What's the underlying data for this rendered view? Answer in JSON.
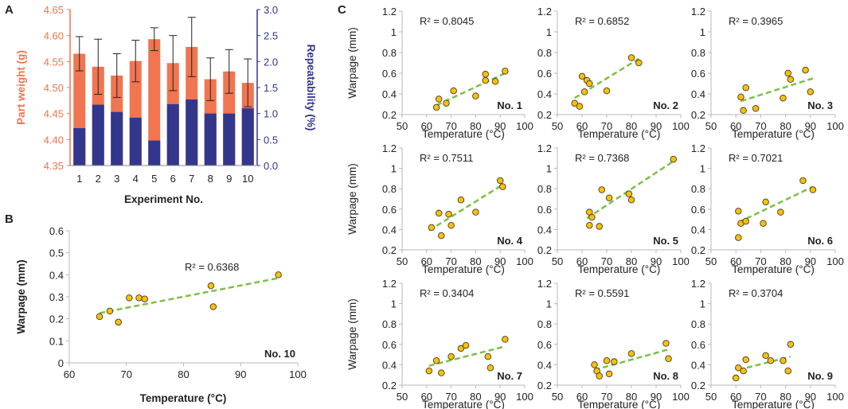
{
  "chart_data": [
    {
      "panel": "A",
      "type": "bar",
      "categories": [
        "1",
        "2",
        "3",
        "4",
        "5",
        "6",
        "7",
        "8",
        "9",
        "10"
      ],
      "xlabel": "Experiment No.",
      "series": [
        {
          "name": "Part weight",
          "axis": "left",
          "values": [
            4.565,
            4.54,
            4.523,
            4.551,
            4.593,
            4.547,
            4.578,
            4.516,
            4.531,
            4.509
          ],
          "errors": [
            0.033,
            0.053,
            0.042,
            0.04,
            0.022,
            0.053,
            0.057,
            0.041,
            0.042,
            0.046
          ]
        },
        {
          "name": "Repeatability",
          "axis": "right",
          "values": [
            0.72,
            1.17,
            1.03,
            0.92,
            0.48,
            1.18,
            1.27,
            1.0,
            1.0,
            1.1
          ]
        }
      ],
      "ylabel_left": "Part weight (g)",
      "ylim_left": [
        4.35,
        4.65
      ],
      "yticks_left": [
        "4.35",
        "4.40",
        "4.45",
        "4.50",
        "4.55",
        "4.60",
        "4.65"
      ],
      "ylabel_right": "Repeatability (%)",
      "ylim_right": [
        0,
        3
      ],
      "yticks_right": [
        "0.0",
        "0.5",
        "1.0",
        "1.5",
        "2.0",
        "2.5",
        "3.0"
      ],
      "colors": {
        "bar_left": "#f07550",
        "bar_right": "#33378c",
        "axis_left": "#f07550",
        "axis_right": "#33378c"
      }
    },
    {
      "panel": "B",
      "type": "scatter",
      "label": "No. 10",
      "r2": "R² = 0.6368",
      "x": [
        65.3,
        67.1,
        68.6,
        70.5,
        72.2,
        73.2,
        84.8,
        85.2,
        96.6
      ],
      "y": [
        0.21,
        0.235,
        0.185,
        0.295,
        0.295,
        0.29,
        0.35,
        0.255,
        0.4
      ],
      "trend": [
        [
          65.3,
          0.226
        ],
        [
          96.6,
          0.385
        ]
      ],
      "xlabel": "Temperature (°C)",
      "ylabel": "Warpage (mm)",
      "xlim": [
        60,
        100
      ],
      "ylim": [
        0,
        0.6
      ],
      "xticks": [
        "60",
        "70",
        "80",
        "90",
        "100"
      ],
      "yticks": [
        "0",
        "0.1",
        "0.2",
        "0.3",
        "0.4",
        "0.5",
        "0.6"
      ]
    },
    {
      "panel": "C",
      "type": "scatter",
      "xlabel": "Temperature (°C)",
      "ylabel": "Warpage (mm)",
      "xlim": [
        50,
        100
      ],
      "ylim": [
        0.2,
        1.2
      ],
      "xticks": [
        "50",
        "60",
        "70",
        "80",
        "90",
        "100"
      ],
      "yticks": [
        "0.2",
        "0.4",
        "0.6",
        "0.8",
        "1",
        "1.2"
      ],
      "subplots": [
        {
          "label": "No. 1",
          "r2": "R² = 0.8045",
          "x": [
            64,
            65,
            68,
            71,
            80,
            84,
            84,
            88,
            92
          ],
          "y": [
            0.27,
            0.35,
            0.31,
            0.43,
            0.38,
            0.59,
            0.53,
            0.52,
            0.62
          ],
          "trend": [
            [
              64,
              0.29
            ],
            [
              92,
              0.6
            ]
          ]
        },
        {
          "label": "No. 2",
          "r2": "R² = 0.6852",
          "x": [
            57,
            59,
            60,
            61,
            62,
            63,
            70,
            80,
            83
          ],
          "y": [
            0.31,
            0.28,
            0.57,
            0.42,
            0.53,
            0.5,
            0.43,
            0.75,
            0.7
          ],
          "trend": [
            [
              57,
              0.36
            ],
            [
              83,
              0.74
            ]
          ]
        },
        {
          "label": "No. 3",
          "r2": "R² = 0.3965",
          "x": [
            62,
            63,
            64,
            68,
            79,
            81,
            82,
            88,
            90
          ],
          "y": [
            0.37,
            0.24,
            0.46,
            0.26,
            0.36,
            0.6,
            0.54,
            0.63,
            0.42
          ],
          "trend": [
            [
              62,
              0.33
            ],
            [
              91,
              0.55
            ]
          ]
        },
        {
          "label": "No. 4",
          "r2": "R² = 0.7511",
          "x": [
            62,
            65,
            66,
            69,
            70,
            74,
            80,
            90,
            91
          ],
          "y": [
            0.42,
            0.56,
            0.34,
            0.55,
            0.44,
            0.69,
            0.57,
            0.88,
            0.82
          ],
          "trend": [
            [
              61,
              0.39
            ],
            [
              91,
              0.84
            ]
          ]
        },
        {
          "label": "No. 5",
          "r2": "R² = 0.7368",
          "x": [
            63,
            63,
            64,
            67,
            68,
            71,
            79,
            80,
            97
          ],
          "y": [
            0.57,
            0.44,
            0.52,
            0.43,
            0.79,
            0.71,
            0.75,
            0.69,
            1.09
          ],
          "trend": [
            [
              62,
              0.51
            ],
            [
              97,
              1.07
            ]
          ]
        },
        {
          "label": "No. 6",
          "r2": "R² = 0.7021",
          "x": [
            61,
            61,
            62,
            64,
            71,
            72,
            78,
            87,
            91
          ],
          "y": [
            0.32,
            0.58,
            0.46,
            0.48,
            0.46,
            0.67,
            0.57,
            0.88,
            0.79
          ],
          "trend": [
            [
              61,
              0.47
            ],
            [
              91,
              0.82
            ]
          ]
        },
        {
          "label": "No. 7",
          "r2": "R² = 0.3404",
          "x": [
            61,
            64,
            66,
            70,
            74,
            76,
            85,
            86,
            92
          ],
          "y": [
            0.34,
            0.44,
            0.32,
            0.48,
            0.56,
            0.59,
            0.48,
            0.37,
            0.65
          ],
          "trend": [
            [
              61,
              0.39
            ],
            [
              92,
              0.58
            ]
          ]
        },
        {
          "label": "No. 8",
          "r2": "R² = 0.5591",
          "x": [
            65,
            66,
            67,
            70,
            71,
            73,
            80,
            94,
            95
          ],
          "y": [
            0.4,
            0.34,
            0.29,
            0.44,
            0.31,
            0.43,
            0.51,
            0.61,
            0.46
          ],
          "trend": [
            [
              65,
              0.35
            ],
            [
              95,
              0.55
            ]
          ]
        },
        {
          "label": "No. 9",
          "r2": "R² = 0.3704",
          "x": [
            60,
            61,
            63,
            64,
            72,
            74,
            79,
            81,
            82
          ],
          "y": [
            0.27,
            0.37,
            0.34,
            0.45,
            0.49,
            0.44,
            0.44,
            0.34,
            0.6
          ],
          "trend": [
            [
              61,
              0.35
            ],
            [
              82,
              0.48
            ]
          ]
        }
      ]
    }
  ],
  "panel_labels": [
    "A",
    "B",
    "C"
  ],
  "colors": {
    "marker_fill": "#ffc000",
    "marker_stroke": "#3a3a3a",
    "trend": "#7bc142",
    "axis": "#b8b8b8",
    "errorbar": "#222222",
    "text": "#222222"
  }
}
